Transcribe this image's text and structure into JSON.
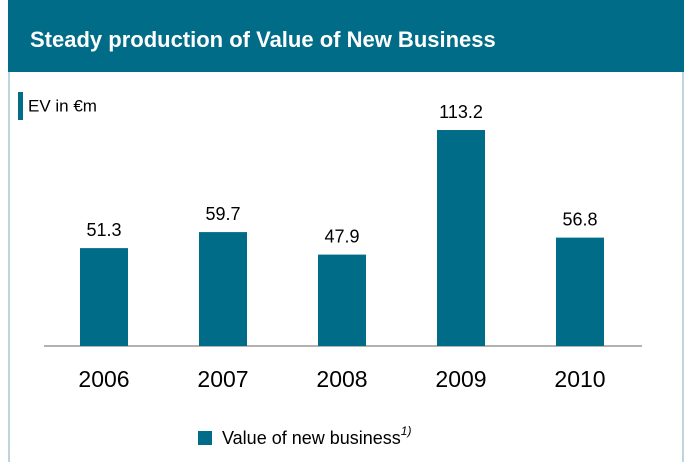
{
  "chart_data": {
    "type": "bar",
    "title": "Steady production of Value of New Business",
    "y_label": "EV in €m",
    "categories": [
      "2006",
      "2007",
      "2008",
      "2009",
      "2010"
    ],
    "series": [
      {
        "name": "Value of new business",
        "footnote_marker": "1)",
        "color": "#006c87",
        "values": [
          51.3,
          59.7,
          47.9,
          113.2,
          56.8
        ]
      }
    ]
  }
}
